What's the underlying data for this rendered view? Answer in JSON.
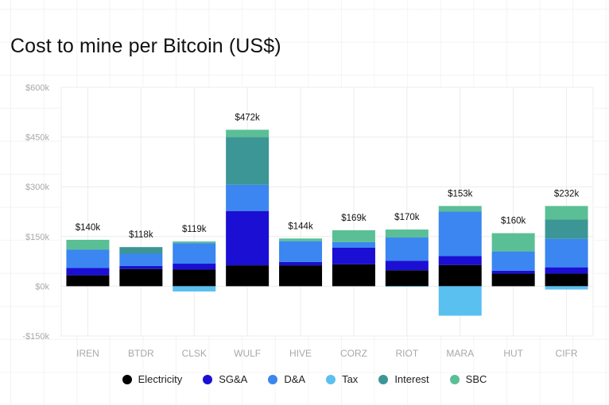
{
  "title": "Cost to mine per Bitcoin (US$)",
  "legend": [
    {
      "name": "Electricity",
      "color": "#000000"
    },
    {
      "name": "SG&A",
      "color": "#1a0fd2"
    },
    {
      "name": "D&A",
      "color": "#3b86f0"
    },
    {
      "name": "Tax",
      "color": "#5ac0f0"
    },
    {
      "name": "Interest",
      "color": "#3d9696"
    },
    {
      "name": "SBC",
      "color": "#5bbf96"
    }
  ],
  "chart_data": {
    "type": "bar",
    "stacked": true,
    "title": "Cost to mine per Bitcoin (US$)",
    "xlabel": "",
    "ylabel": "",
    "ylim": [
      -150,
      600
    ],
    "y_unit": "thousands USD",
    "yticks": [
      600,
      450,
      300,
      150,
      0,
      -150
    ],
    "ytick_labels": [
      "$600k",
      "$450k",
      "$300k",
      "$150k",
      "$0k",
      "-$150k"
    ],
    "grid": true,
    "legend_position": "bottom",
    "categories": [
      "IREN",
      "BTDR",
      "CLSK",
      "WULF",
      "HIVE",
      "CORZ",
      "RIOT",
      "MARA",
      "HUT",
      "CIFR"
    ],
    "series": [
      {
        "name": "Electricity",
        "color": "#000000",
        "values": [
          33,
          52,
          50,
          63,
          63,
          66,
          48,
          64,
          38,
          38
        ]
      },
      {
        "name": "SG&A",
        "color": "#1a0fd2",
        "values": [
          22,
          9,
          18,
          164,
          10,
          50,
          29,
          27,
          9,
          19
        ]
      },
      {
        "name": "D&A",
        "color": "#3b86f0",
        "values": [
          55,
          37,
          62,
          79,
          63,
          17,
          70,
          134,
          58,
          86
        ]
      },
      {
        "name": "Tax",
        "color": "#5ac0f0",
        "values": [
          0,
          0,
          -16,
          0,
          0,
          0,
          -1,
          -89,
          0,
          -10
        ]
      },
      {
        "name": "Interest",
        "color": "#3d9696",
        "values": [
          0,
          20,
          0,
          144,
          0,
          0,
          0,
          0,
          0,
          58
        ]
      },
      {
        "name": "SBC",
        "color": "#5bbf96",
        "values": [
          30,
          0,
          5,
          22,
          8,
          36,
          24,
          17,
          55,
          41
        ]
      }
    ],
    "totals": [
      140,
      118,
      119,
      472,
      144,
      169,
      170,
      153,
      160,
      232
    ],
    "total_labels": [
      "$140k",
      "$118k",
      "$119k",
      "$472k",
      "$144k",
      "$169k",
      "$170k",
      "$153k",
      "$160k",
      "$232k"
    ]
  }
}
